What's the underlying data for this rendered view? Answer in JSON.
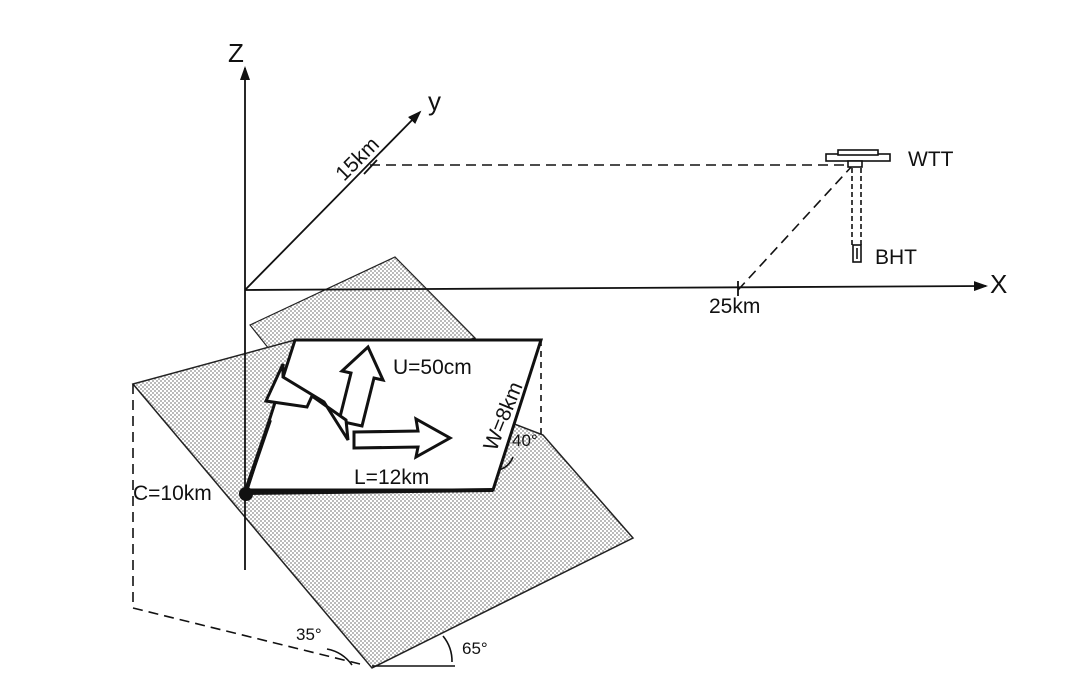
{
  "axes": {
    "z_label": "Z",
    "y_label": "y",
    "x_label": "X",
    "y_tick": "15km",
    "x_tick": "25km"
  },
  "instruments": {
    "wtt_label": "WTT",
    "bht_label": "BHT"
  },
  "fault": {
    "slip_label": "U=50cm",
    "width_label": "W=8km",
    "length_label": "L=12km",
    "depth_label": "C=10km",
    "rake_angle": "40°",
    "dip_angle": "35°",
    "strike_angle": "65°"
  },
  "colors": {
    "ink": "#111111",
    "stipple": "#9a9a9a",
    "background": "#ffffff"
  }
}
